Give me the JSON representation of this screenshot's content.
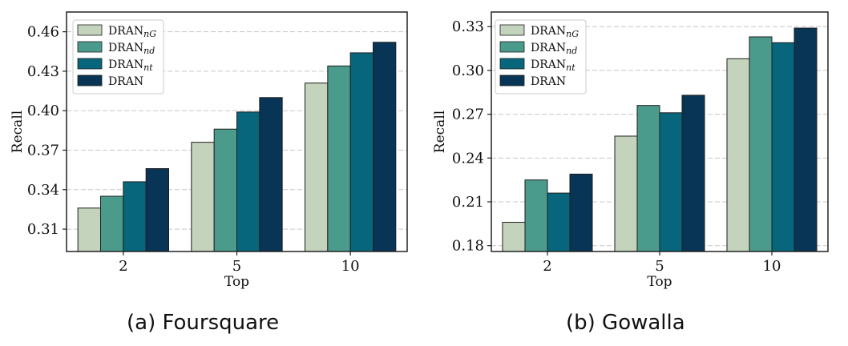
{
  "colors": {
    "DRAN_nG": "#c3d3bc",
    "DRAN_nd": "#4b9b8d",
    "DRAN_nt": "#08667c",
    "DRAN": "#083556",
    "grid": "#c8c8c8",
    "frame": "#222222"
  },
  "legend": [
    {
      "base": "DRAN",
      "sub": "nG",
      "color_key": "DRAN_nG"
    },
    {
      "base": "DRAN",
      "sub": "nd",
      "color_key": "DRAN_nd"
    },
    {
      "base": "DRAN",
      "sub": "nt",
      "color_key": "DRAN_nt"
    },
    {
      "base": "DRAN",
      "sub": "",
      "color_key": "DRAN"
    }
  ],
  "chart_data": [
    {
      "type": "bar",
      "caption": "(a)  Foursquare",
      "xlabel": "Top",
      "ylabel": "Recall",
      "categories": [
        "2",
        "5",
        "10"
      ],
      "ylim": [
        0.293,
        0.475
      ],
      "yticks": [
        "0.31",
        "0.34",
        "0.37",
        "0.40",
        "0.43",
        "0.46"
      ],
      "grid": true,
      "legend_position": "upper-left",
      "series": [
        {
          "name": "DRAN_nG",
          "values": [
            0.326,
            0.376,
            0.421
          ]
        },
        {
          "name": "DRAN_nd",
          "values": [
            0.335,
            0.386,
            0.434
          ]
        },
        {
          "name": "DRAN_nt",
          "values": [
            0.346,
            0.399,
            0.444
          ]
        },
        {
          "name": "DRAN",
          "values": [
            0.356,
            0.41,
            0.452
          ]
        }
      ]
    },
    {
      "type": "bar",
      "caption": "(b)  Gowalla",
      "xlabel": "Top",
      "ylabel": "Recall",
      "categories": [
        "2",
        "5",
        "10"
      ],
      "ylim": [
        0.176,
        0.34
      ],
      "yticks": [
        "0.18",
        "0.21",
        "0.24",
        "0.27",
        "0.30",
        "0.33"
      ],
      "grid": true,
      "legend_position": "upper-left",
      "series": [
        {
          "name": "DRAN_nG",
          "values": [
            0.196,
            0.255,
            0.308
          ]
        },
        {
          "name": "DRAN_nd",
          "values": [
            0.225,
            0.276,
            0.323
          ]
        },
        {
          "name": "DRAN_nt",
          "values": [
            0.216,
            0.271,
            0.319
          ]
        },
        {
          "name": "DRAN",
          "values": [
            0.229,
            0.283,
            0.329
          ]
        }
      ]
    }
  ]
}
